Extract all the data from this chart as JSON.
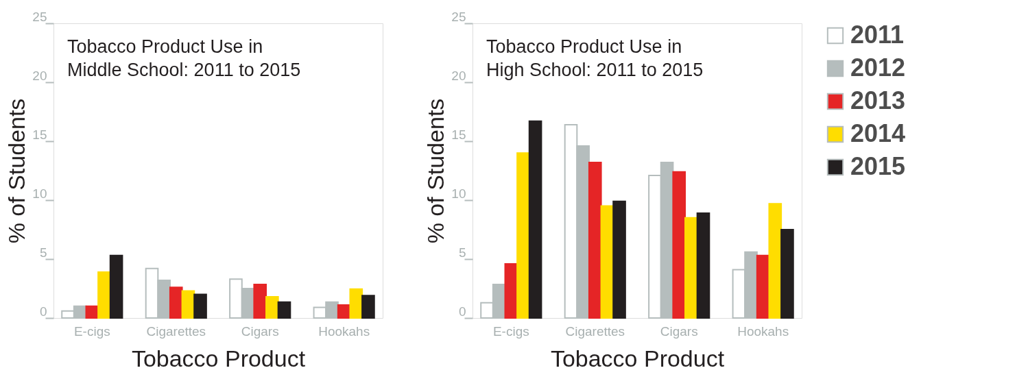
{
  "chart_data": [
    {
      "type": "bar",
      "title": "Tobacco Product Use in\nMiddle School: 2011 to 2015",
      "xlabel": "Tobacco Product",
      "ylabel": "% of Students",
      "categories": [
        "E-cigs",
        "Cigarettes",
        "Cigars",
        "Hookahs"
      ],
      "ylim": [
        0,
        25
      ],
      "yticks": [
        0,
        5,
        10,
        15,
        20,
        25
      ],
      "grid": false,
      "legend": "right",
      "series": [
        {
          "name": "2011",
          "color": "#ffffff",
          "values": [
            0.6,
            4.2,
            3.3,
            0.9
          ]
        },
        {
          "name": "2012",
          "color": "#b5bdbd",
          "values": [
            1.0,
            3.2,
            2.5,
            1.35
          ]
        },
        {
          "name": "2013",
          "color": "#e52526",
          "values": [
            1.0,
            2.6,
            2.85,
            1.1
          ]
        },
        {
          "name": "2014",
          "color": "#ffdd00",
          "values": [
            3.9,
            2.3,
            1.8,
            2.45
          ]
        },
        {
          "name": "2015",
          "color": "#231f20",
          "values": [
            5.3,
            2.0,
            1.35,
            1.9
          ]
        }
      ]
    },
    {
      "type": "bar",
      "title": "Tobacco Product Use in\nHigh School: 2011 to 2015",
      "xlabel": "Tobacco Product",
      "ylabel": "% of Students",
      "categories": [
        "E-cigs",
        "Cigarettes",
        "Cigars",
        "Hookahs"
      ],
      "ylim": [
        0,
        25
      ],
      "yticks": [
        0,
        5,
        10,
        15,
        20,
        25
      ],
      "grid": false,
      "legend": "right",
      "series": [
        {
          "name": "2011",
          "color": "#ffffff",
          "values": [
            1.3,
            16.4,
            12.1,
            4.1
          ]
        },
        {
          "name": "2012",
          "color": "#b5bdbd",
          "values": [
            2.85,
            14.6,
            13.2,
            5.6
          ]
        },
        {
          "name": "2013",
          "color": "#e52526",
          "values": [
            4.6,
            13.2,
            12.4,
            5.3
          ]
        },
        {
          "name": "2014",
          "color": "#ffdd00",
          "values": [
            14.0,
            9.5,
            8.5,
            9.7
          ]
        },
        {
          "name": "2015",
          "color": "#231f20",
          "values": [
            16.7,
            9.9,
            8.9,
            7.5
          ]
        }
      ]
    }
  ]
}
